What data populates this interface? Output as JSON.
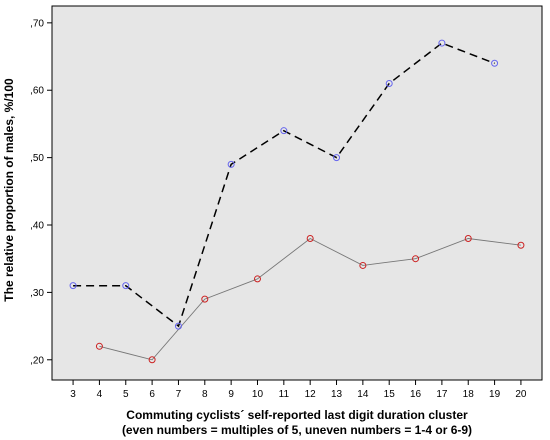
{
  "chart_data": {
    "type": "line",
    "title": "",
    "xlabel_line1": "Commuting cyclists´ self-reported last digit duration cluster",
    "xlabel_line2": "(even numbers = multiples of 5, uneven numbers = 1-4 or 6-9)",
    "ylabel": "The relative proportion of males, %/100",
    "x_ticks": [
      3,
      4,
      5,
      6,
      7,
      8,
      9,
      10,
      11,
      12,
      13,
      14,
      15,
      16,
      17,
      18,
      19,
      20
    ],
    "y_ticks": [
      ",20",
      ",30",
      ",40",
      ",50",
      ",60",
      ",70"
    ],
    "y_tick_values": [
      0.2,
      0.3,
      0.4,
      0.5,
      0.6,
      0.7
    ],
    "xlim": [
      2.2,
      20.8
    ],
    "ylim": [
      0.17,
      0.725
    ],
    "grid": false,
    "background": "#e6e6e6",
    "series": [
      {
        "style": "dashed",
        "line_color": "#000000",
        "marker_color": "#6666ee",
        "x": [
          3,
          5,
          7,
          9,
          11,
          13,
          15,
          17,
          19
        ],
        "y": [
          0.31,
          0.31,
          0.25,
          0.49,
          0.54,
          0.5,
          0.61,
          0.67,
          0.64
        ]
      },
      {
        "style": "solid",
        "line_color": "#777777",
        "marker_color": "#cc2222",
        "x": [
          4,
          6,
          8,
          10,
          12,
          14,
          16,
          18,
          20
        ],
        "y": [
          0.22,
          0.2,
          0.29,
          0.32,
          0.38,
          0.34,
          0.35,
          0.38,
          0.37
        ]
      }
    ]
  }
}
